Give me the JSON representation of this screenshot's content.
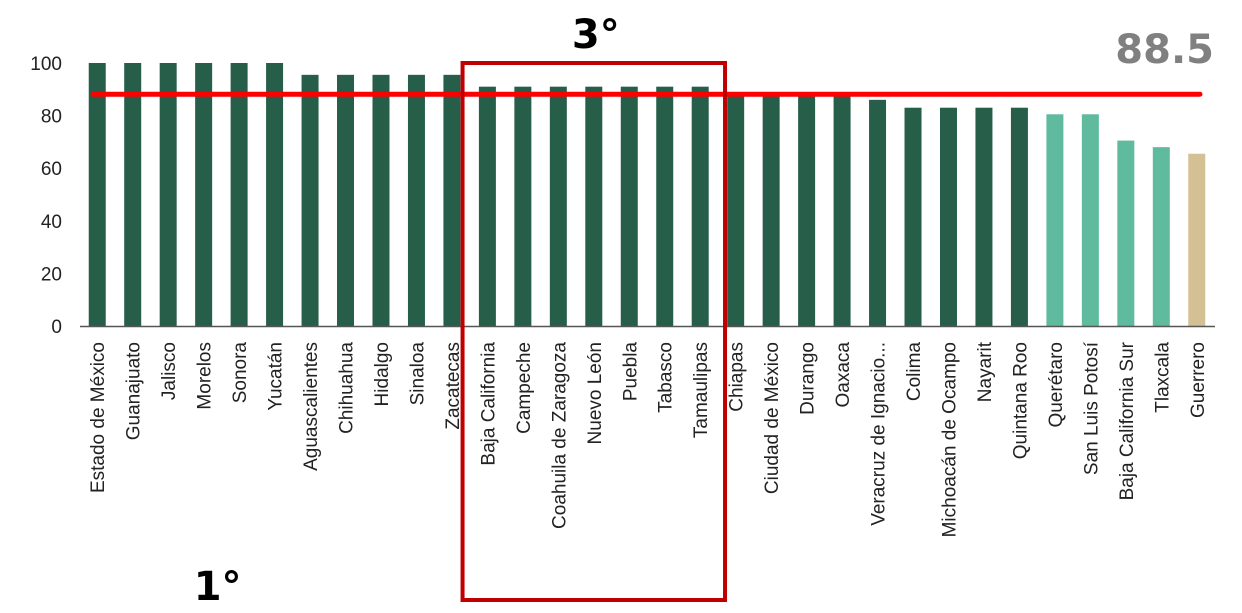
{
  "chart_data": {
    "type": "bar",
    "title": "",
    "xlabel": "",
    "ylabel": "",
    "ylim": [
      0,
      100
    ],
    "yticks": [
      0,
      20,
      40,
      60,
      80,
      100
    ],
    "grid": false,
    "categories": [
      "Estado de México",
      "Guanajuato",
      "Jalisco",
      "Morelos",
      "Sonora",
      "Yucatán",
      "Aguascalientes",
      "Chihuahua",
      "Hidalgo",
      "Sinaloa",
      "Zacatecas",
      "Baja California",
      "Campeche",
      "Coahuila de Zaragoza",
      "Nuevo León",
      "Puebla",
      "Tabasco",
      "Tamaulipas",
      "Chiapas",
      "Ciudad de México",
      "Durango",
      "Oaxaca",
      "Veracruz de Ignacio...",
      "Colima",
      "Michoacán de Ocampo",
      "Nayarit",
      "Quintana Roo",
      "Querétaro",
      "San Luis Potosí",
      "Baja California Sur",
      "Tlaxcala",
      "Guerrero"
    ],
    "values": [
      100,
      100,
      100,
      100,
      100,
      100,
      95.5,
      95.5,
      95.5,
      95.5,
      95.5,
      91,
      91,
      91,
      91,
      91,
      91,
      91,
      88.5,
      88.5,
      88.5,
      88.5,
      86,
      83,
      83,
      83,
      83,
      80.5,
      80.5,
      70.5,
      68,
      65.5
    ],
    "bar_colors": [
      "#275e4a",
      "#275e4a",
      "#275e4a",
      "#275e4a",
      "#275e4a",
      "#275e4a",
      "#275e4a",
      "#275e4a",
      "#275e4a",
      "#275e4a",
      "#275e4a",
      "#275e4a",
      "#275e4a",
      "#275e4a",
      "#275e4a",
      "#275e4a",
      "#275e4a",
      "#275e4a",
      "#275e4a",
      "#275e4a",
      "#275e4a",
      "#275e4a",
      "#275e4a",
      "#275e4a",
      "#275e4a",
      "#275e4a",
      "#275e4a",
      "#5fba9e",
      "#5fba9e",
      "#5fba9e",
      "#5fba9e",
      "#d4c095"
    ],
    "reference_line": {
      "value": 88.5,
      "label": "88.5",
      "color": "#ff0000"
    },
    "highlight_box": {
      "from_category": "Baja California",
      "to_category": "Tamaulipas",
      "color": "#c00000",
      "label": "3°"
    },
    "annotations": [
      {
        "text": "1°",
        "near_category": "Morelos"
      }
    ]
  }
}
